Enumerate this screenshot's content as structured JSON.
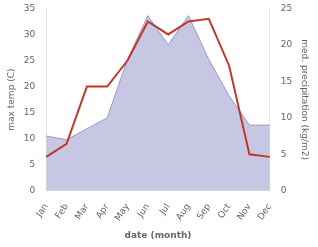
{
  "chart_data": {
    "type": "line",
    "xlabel": "date (month)",
    "ylabel": "max temp (C)",
    "y2label": "med. precipitation (kg/m2)",
    "categories": [
      "Jan",
      "Feb",
      "Mar",
      "Apr",
      "May",
      "Jun",
      "Jul",
      "Aug",
      "Sep",
      "Oct",
      "Nov",
      "Dec"
    ],
    "series": [
      {
        "type": "area",
        "axis": "y2",
        "color": "#9999cc",
        "values": [
          7.5,
          7.0,
          8.5,
          10.0,
          18.0,
          24.0,
          20.0,
          24.0,
          18.0,
          13.0,
          9.0,
          9.0
        ]
      },
      {
        "type": "line",
        "color": "#c0392b",
        "values": [
          6.5,
          9.0,
          20.0,
          20.0,
          25.0,
          32.5,
          30.0,
          32.5,
          33.0,
          24.0,
          7.0,
          6.5
        ]
      }
    ],
    "ylim": [
      0,
      35
    ],
    "yticks": [
      0,
      5,
      10,
      15,
      20,
      25,
      30,
      35
    ],
    "y2lim": [
      0,
      25
    ],
    "y2ticks": [
      0,
      5,
      10,
      15,
      20,
      25
    ],
    "grid": false
  }
}
